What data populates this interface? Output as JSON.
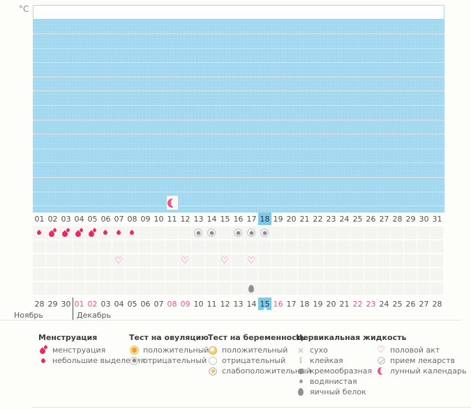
{
  "temperature_axis": {
    "unit_label": "°C"
  },
  "calendar": {
    "cycle_days": [
      "01",
      "02",
      "03",
      "04",
      "05",
      "06",
      "07",
      "08",
      "09",
      "10",
      "11",
      "12",
      "13",
      "14",
      "15",
      "16",
      "17",
      "18",
      "19",
      "20",
      "21",
      "22",
      "23",
      "24",
      "25",
      "26",
      "27",
      "28",
      "29",
      "30",
      "31"
    ],
    "today_cycle_day": "18",
    "dates": [
      {
        "day": "28",
        "weekend": false,
        "today": false
      },
      {
        "day": "29",
        "weekend": false,
        "today": false
      },
      {
        "day": "30",
        "weekend": false,
        "today": false
      },
      {
        "day": "01",
        "weekend": true,
        "today": false
      },
      {
        "day": "02",
        "weekend": true,
        "today": false
      },
      {
        "day": "03",
        "weekend": false,
        "today": false
      },
      {
        "day": "04",
        "weekend": false,
        "today": false
      },
      {
        "day": "05",
        "weekend": false,
        "today": false
      },
      {
        "day": "06",
        "weekend": false,
        "today": false
      },
      {
        "day": "07",
        "weekend": false,
        "today": false
      },
      {
        "day": "08",
        "weekend": true,
        "today": false
      },
      {
        "day": "09",
        "weekend": true,
        "today": false
      },
      {
        "day": "10",
        "weekend": false,
        "today": false
      },
      {
        "day": "11",
        "weekend": false,
        "today": false
      },
      {
        "day": "12",
        "weekend": false,
        "today": false
      },
      {
        "day": "13",
        "weekend": false,
        "today": false
      },
      {
        "day": "14",
        "weekend": false,
        "today": false
      },
      {
        "day": "15",
        "weekend": true,
        "today": true
      },
      {
        "day": "16",
        "weekend": true,
        "today": false
      },
      {
        "day": "17",
        "weekend": false,
        "today": false
      },
      {
        "day": "18",
        "weekend": false,
        "today": false
      },
      {
        "day": "19",
        "weekend": false,
        "today": false
      },
      {
        "day": "20",
        "weekend": false,
        "today": false
      },
      {
        "day": "21",
        "weekend": false,
        "today": false
      },
      {
        "day": "22",
        "weekend": true,
        "today": false
      },
      {
        "day": "23",
        "weekend": true,
        "today": false
      },
      {
        "day": "24",
        "weekend": false,
        "today": false
      },
      {
        "day": "25",
        "weekend": false,
        "today": false
      },
      {
        "day": "26",
        "weekend": false,
        "today": false
      },
      {
        "day": "27",
        "weekend": false,
        "today": false
      },
      {
        "day": "28",
        "weekend": false,
        "today": false
      }
    ],
    "months": {
      "first": "Ноябрь",
      "second": "Декабрь"
    },
    "moon_marker": {
      "cycle_day": 11,
      "icon": "moon"
    },
    "icon_rows": [
      {
        "name": "menstruation-and-ovulation-tests",
        "icons": {
          "1": "drop-small",
          "2": "drop-double",
          "3": "drop-double",
          "4": "drop-double",
          "5": "drop-double",
          "6": "drop-small",
          "7": "drop-small",
          "8": "drop-small",
          "13": "ovul-neg",
          "14": "ovul-neg",
          "16": "ovul-neg",
          "17": "ovul-neg",
          "18": "ovul-neg"
        }
      },
      {
        "name": "pregnancy-tests",
        "icons": {}
      },
      {
        "name": "intercourse",
        "icons": {
          "7": "heart",
          "12": "heart",
          "15": "heart",
          "17": "heart"
        }
      },
      {
        "name": "medications",
        "icons": {}
      },
      {
        "name": "cervical-fluid",
        "icons": {
          "17": "cf-eggwhite"
        }
      }
    ]
  },
  "legend": {
    "sections": [
      {
        "title": "Менструация",
        "items": [
          {
            "icon": "drop-double",
            "label": "менструация"
          },
          {
            "icon": "drop-small",
            "label": "небольшие выделения"
          }
        ]
      },
      {
        "title": "Тест на овуляцию",
        "items": [
          {
            "icon": "ovul-pos",
            "label": "положительный"
          },
          {
            "icon": "ovul-neg",
            "label": "отрицательный"
          }
        ]
      },
      {
        "title": "Тест на беременность",
        "items": [
          {
            "icon": "preg-pos",
            "label": "положительный"
          },
          {
            "icon": "preg-neg",
            "label": "отрицательный"
          },
          {
            "icon": "preg-weak",
            "label": "слабоположительный"
          }
        ]
      },
      {
        "title": "Цервикальная жидкость",
        "items": [
          {
            "icon": "cf-dry",
            "label": "сухо"
          },
          {
            "icon": "cf-sticky",
            "label": "клейкая"
          },
          {
            "icon": "cf-creamy",
            "label": "кремообразная"
          },
          {
            "icon": "cf-watery",
            "label": "водянистая"
          },
          {
            "icon": "cf-eggwhite",
            "label": "яичный белок"
          }
        ]
      },
      {
        "title": "",
        "items": [
          {
            "icon": "heart",
            "label": "половой акт"
          },
          {
            "icon": "pill",
            "label": "прием лекарств"
          },
          {
            "icon": "moon",
            "label": "лунный календарь"
          }
        ]
      }
    ]
  },
  "colors": {
    "chart_blue": "#a2d8f0",
    "today_highlight_blue": "#7dcaec",
    "weekend_pink": "#f4538a",
    "menstruation_red": "#ea295f",
    "heart_pink": "#f2679b",
    "moon_pink": "#f25388",
    "ovulation_positive_orange": "#eea22c"
  }
}
